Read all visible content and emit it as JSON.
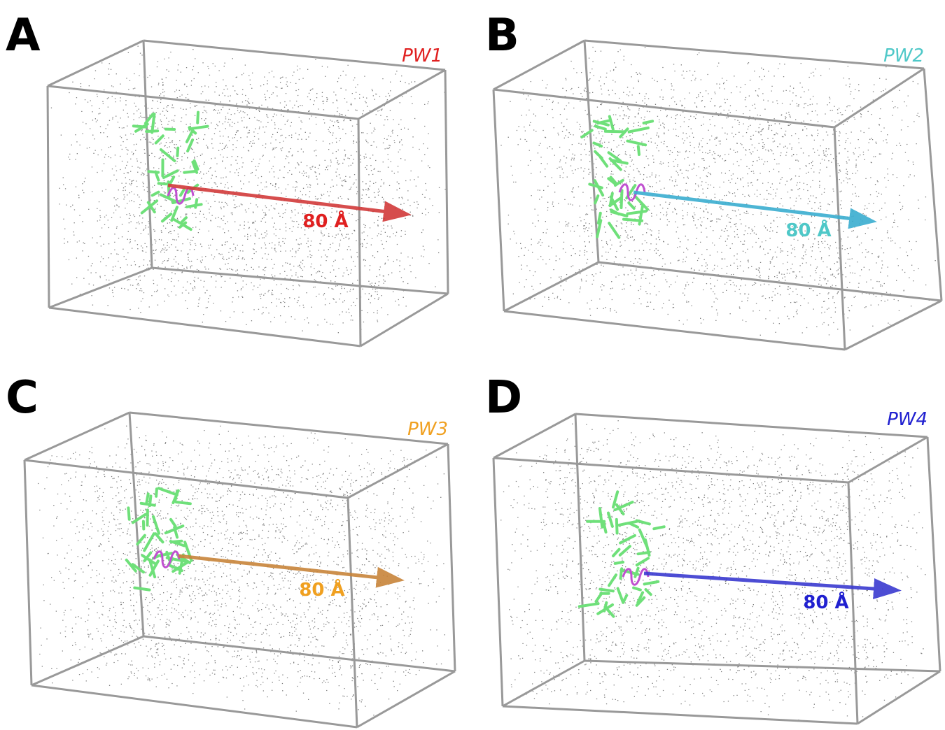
{
  "panels": [
    {
      "letter": "A",
      "name": "PW1",
      "distance": "80 Å"
    },
    {
      "letter": "B",
      "name": "PW2",
      "distance": "80 Å"
    },
    {
      "letter": "C",
      "name": "PW3",
      "distance": "80 Å"
    },
    {
      "letter": "D",
      "name": "PW4",
      "distance": "80 Å"
    }
  ]
}
